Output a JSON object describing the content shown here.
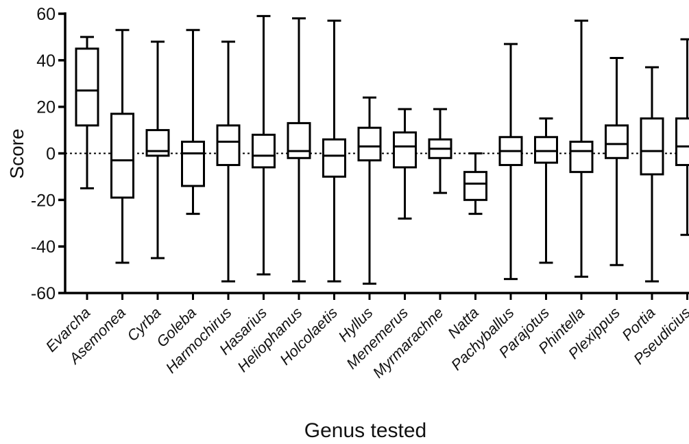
{
  "chart_data": {
    "type": "boxplot",
    "title": "",
    "xlabel": "Genus tested",
    "ylabel": "Score",
    "ylim": [
      -60,
      60
    ],
    "yticks": [
      60,
      40,
      20,
      0,
      -20,
      -40,
      -60
    ],
    "ytick_labels": [
      "60",
      "40",
      "20",
      "0",
      "-20",
      "-40",
      "-60"
    ],
    "reference_line": {
      "y": 0,
      "style": "dotted"
    },
    "grid": false,
    "legend": "none",
    "colors": {
      "box_stroke": "#000000",
      "box_fill": "#ffffff",
      "reference": "#000000"
    },
    "categories": [
      "Evarcha",
      "Asemonea",
      "Cyrba",
      "Goleba",
      "Harmochirus",
      "Hasarius",
      "Heliophanus",
      "Holcolaetis",
      "Hyllus",
      "Menemerus",
      "Myrmarachne",
      "Natta",
      "Pachyballus",
      "Parajotus",
      "Phintella",
      "Plexippus",
      "Portia",
      "Pseudicius"
    ],
    "boxes": [
      {
        "min": -15,
        "q1": 12,
        "median": 27,
        "q3": 45,
        "max": 50
      },
      {
        "min": -47,
        "q1": -19,
        "median": -3,
        "q3": 17,
        "max": 53
      },
      {
        "min": -45,
        "q1": -1,
        "median": 1,
        "q3": 10,
        "max": 48
      },
      {
        "min": -26,
        "q1": -14,
        "median": 0,
        "q3": 5,
        "max": 53
      },
      {
        "min": -55,
        "q1": -5,
        "median": 5,
        "q3": 12,
        "max": 48
      },
      {
        "min": -52,
        "q1": -6,
        "median": -1,
        "q3": 8,
        "max": 59
      },
      {
        "min": -55,
        "q1": -2,
        "median": 1,
        "q3": 13,
        "max": 58
      },
      {
        "min": -55,
        "q1": -10,
        "median": -1,
        "q3": 6,
        "max": 57
      },
      {
        "min": -56,
        "q1": -3,
        "median": 3,
        "q3": 11,
        "max": 24
      },
      {
        "min": -28,
        "q1": -6,
        "median": 3,
        "q3": 9,
        "max": 19
      },
      {
        "min": -17,
        "q1": -2,
        "median": 2,
        "q3": 6,
        "max": 19
      },
      {
        "min": -26,
        "q1": -20,
        "median": -13,
        "q3": -8,
        "max": 0
      },
      {
        "min": -54,
        "q1": -5,
        "median": 1,
        "q3": 7,
        "max": 47
      },
      {
        "min": -47,
        "q1": -4,
        "median": 1,
        "q3": 7,
        "max": 15
      },
      {
        "min": -53,
        "q1": -8,
        "median": 1,
        "q3": 5,
        "max": 57
      },
      {
        "min": -48,
        "q1": -2,
        "median": 4,
        "q3": 12,
        "max": 41
      },
      {
        "min": -55,
        "q1": -9,
        "median": 1,
        "q3": 15,
        "max": 37
      },
      {
        "min": -35,
        "q1": -5,
        "median": 3,
        "q3": 15,
        "max": 49
      }
    ]
  }
}
